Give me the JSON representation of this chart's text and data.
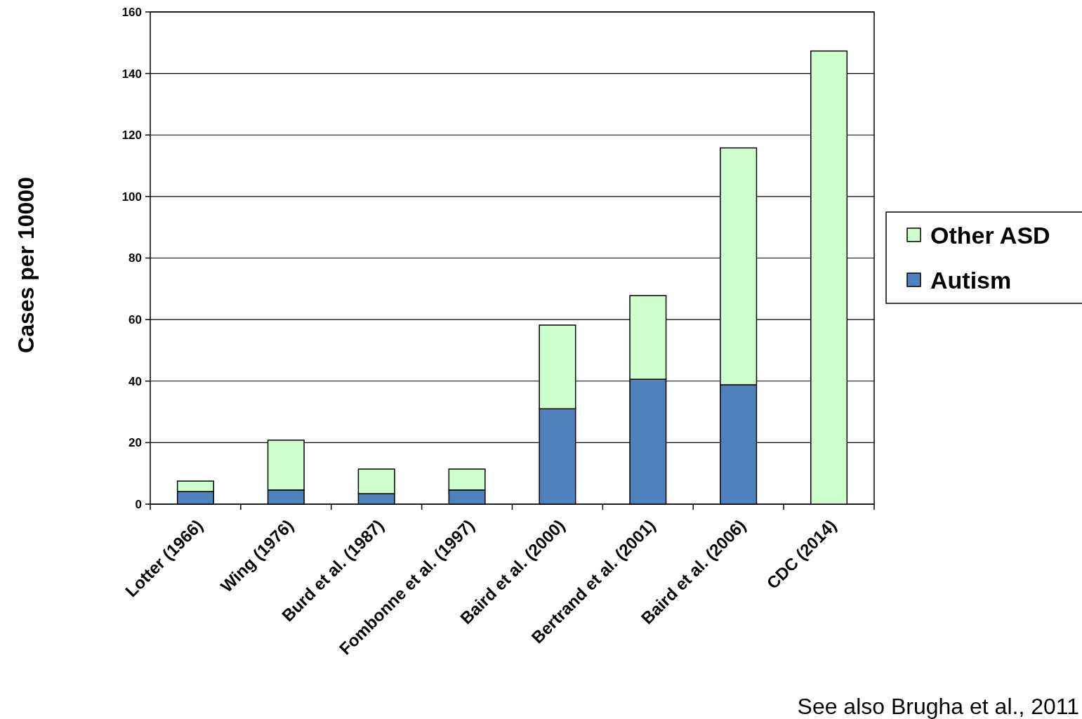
{
  "chart_data": {
    "type": "bar",
    "ylabel": "Cases per 10000",
    "categories": [
      "Lotter (1966)",
      "Wing (1976)",
      "Burd et al. (1987)",
      "Fombonne et al. (1997)",
      "Baird et al. (2000)",
      "Bertrand et al. (2001)",
      "Baird et al. (2006)",
      "CDC (2014)"
    ],
    "series": [
      {
        "name": "Autism",
        "color": "#4f81bd",
        "values": [
          4.1,
          4.6,
          3.4,
          4.6,
          31,
          40.6,
          38.8,
          null
        ]
      },
      {
        "name": "Other ASD",
        "color": "#ccffcc",
        "values": [
          3.4,
          16.2,
          8,
          6.8,
          27.2,
          27.2,
          77,
          147.3
        ]
      }
    ],
    "stacked": true,
    "ylim": [
      0,
      160
    ],
    "yticks": [
      0,
      20,
      40,
      60,
      80,
      100,
      120,
      140,
      160
    ],
    "grid": "y",
    "legend": "right",
    "annotations": [
      "See also Brugha et al., 2011"
    ]
  }
}
